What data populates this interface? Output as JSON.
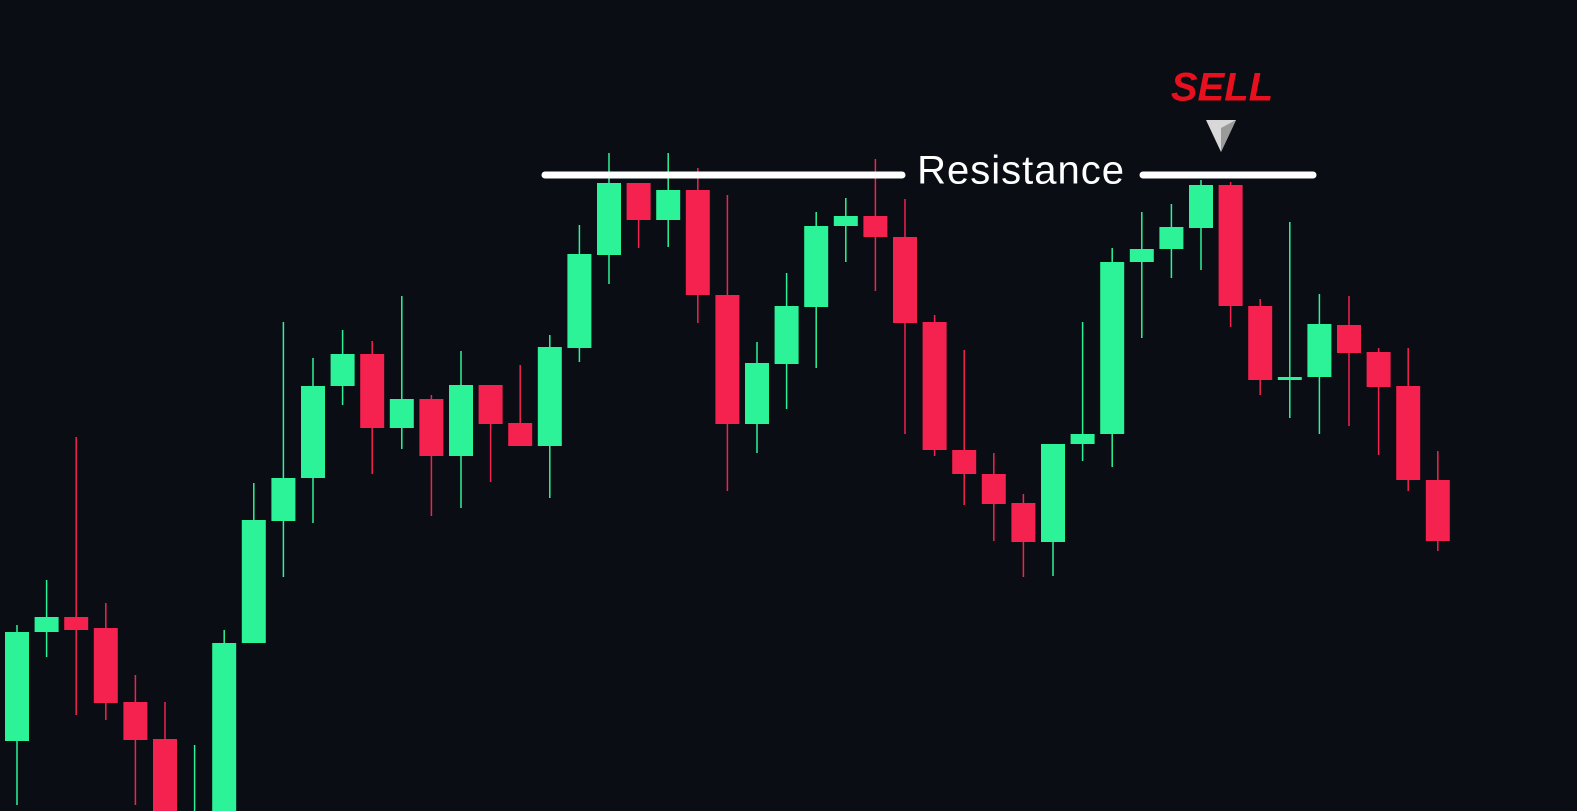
{
  "chart_data": {
    "type": "candlestick",
    "categories": [
      null,
      null,
      null,
      null,
      null,
      null,
      null,
      null,
      null,
      null,
      null,
      null,
      null,
      null,
      null,
      null,
      null,
      null,
      null,
      null,
      null,
      null,
      null,
      null,
      null,
      null,
      null,
      null,
      null,
      null,
      null,
      null,
      null,
      null,
      null,
      null,
      null,
      null,
      null,
      null,
      null,
      null,
      null,
      null,
      null,
      null,
      null,
      null,
      null
    ],
    "open": [
      70,
      179,
      194,
      183,
      109,
      72,
      0,
      0,
      168,
      290,
      333,
      425,
      457,
      383,
      412,
      355,
      426,
      388,
      365,
      463,
      556,
      628,
      591,
      621,
      516,
      387,
      447,
      504,
      585,
      595,
      574,
      489,
      361,
      337,
      308,
      269,
      367,
      377,
      549,
      562,
      583,
      626,
      505,
      431,
      434,
      486,
      459,
      425,
      331
    ],
    "high": [
      186,
      231,
      374,
      208,
      136,
      109,
      66,
      181,
      328,
      489,
      453,
      481,
      470,
      515,
      416,
      460,
      426,
      446,
      476,
      586,
      658,
      628,
      658,
      643,
      616,
      469,
      538,
      599,
      613,
      652,
      612,
      496,
      461,
      358,
      317,
      367,
      489,
      563,
      599,
      607,
      631,
      629,
      512,
      589,
      517,
      515,
      463,
      463,
      360
    ],
    "low": [
      6,
      154,
      96,
      91,
      6,
      0,
      0,
      0,
      168,
      234,
      288,
      406,
      337,
      362,
      295,
      303,
      329,
      365,
      313,
      449,
      527,
      563,
      564,
      488,
      320,
      358,
      402,
      443,
      549,
      520,
      377,
      355,
      306,
      270,
      234,
      235,
      350,
      344,
      473,
      533,
      541,
      484,
      416,
      393,
      377,
      385,
      356,
      320,
      260
    ],
    "close": [
      179,
      194,
      181,
      108,
      71,
      0,
      0,
      168,
      291,
      333,
      425,
      457,
      383,
      412,
      355,
      426,
      387,
      365,
      464,
      557,
      628,
      591,
      621,
      516,
      387,
      448,
      505,
      585,
      595,
      574,
      488,
      361,
      337,
      307,
      269,
      367,
      377,
      549,
      562,
      584,
      626,
      505,
      431,
      434,
      487,
      458,
      424,
      331,
      270
    ],
    "up_color": "#2cf397",
    "down_color": "#f5214f",
    "ylim": [
      0,
      811
    ],
    "resistance_label": "Resistance",
    "resistance_level": 636,
    "sell_label": "SELL"
  }
}
